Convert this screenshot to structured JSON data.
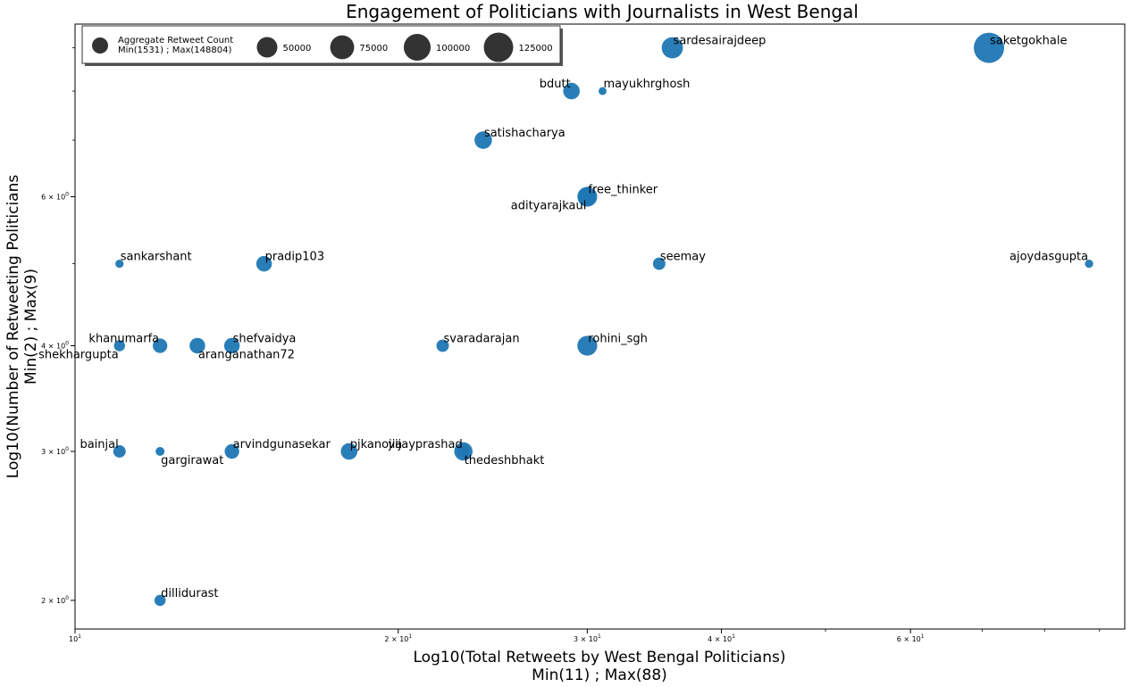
{
  "chart_data": {
    "type": "scatter",
    "title": "Engagement of Politicians with Journalists in West Bengal",
    "xlabel": "Log10(Total Retweets by West Bengal Politicians)",
    "xlabel_sub": "Min(11) ; Max(88)",
    "ylabel": "Log10(Number of Retweeting Politicians",
    "ylabel_sub": "Min(2) ; Max(9)",
    "x_scale": "log",
    "y_scale": "log",
    "xlim": [
      10,
      95
    ],
    "ylim": [
      1.85,
      9.6
    ],
    "grid": false,
    "x_ticks": [
      {
        "value": 10,
        "label": "10",
        "exp": "1"
      },
      {
        "value": 20,
        "label": "2 × 10",
        "exp": "1"
      },
      {
        "value": 30,
        "label": "3 × 10",
        "exp": "1"
      },
      {
        "value": 40,
        "label": "4 × 10",
        "exp": "1"
      },
      {
        "value": 60,
        "label": "6 × 10",
        "exp": "1"
      }
    ],
    "x_minor_ticks": [
      50,
      70,
      80,
      90
    ],
    "y_ticks": [
      {
        "value": 2,
        "label": "2 × 10",
        "exp": "0"
      },
      {
        "value": 3,
        "label": "3 × 10",
        "exp": "0"
      },
      {
        "value": 4,
        "label": "4 × 10",
        "exp": "0"
      },
      {
        "value": 6,
        "label": "6 × 10",
        "exp": "0"
      }
    ],
    "y_minor_ticks": [
      5,
      7,
      8,
      9
    ],
    "color": "#1f77b4",
    "legend": {
      "position": "top-left",
      "title": "Aggregate Retweet Count",
      "subtitle": "Min(1531) ; Max(148804)",
      "entries": [
        {
          "label": "50000",
          "value": 50000
        },
        {
          "label": "75000",
          "value": 75000
        },
        {
          "label": "100000",
          "value": 100000
        },
        {
          "label": "125000",
          "value": 125000
        }
      ]
    },
    "points": [
      {
        "name": "saketgokhale",
        "x": 71,
        "y": 9,
        "size": 148804,
        "anchor": "right-top"
      },
      {
        "name": "sardesairajdeep",
        "x": 36,
        "y": 9,
        "size": 60000,
        "anchor": "right-top"
      },
      {
        "name": "bdutt",
        "x": 29,
        "y": 8,
        "size": 30000,
        "anchor": "left-top"
      },
      {
        "name": "mayukhrghosh",
        "x": 31,
        "y": 8,
        "size": 1531,
        "anchor": "right-top"
      },
      {
        "name": "satishacharya",
        "x": 24,
        "y": 7,
        "size": 35000,
        "anchor": "right-top"
      },
      {
        "name": "free_thinker",
        "x": 30,
        "y": 6,
        "size": 50000,
        "anchor": "right-top"
      },
      {
        "name": "adityarajkaul",
        "x": 30,
        "y": 6,
        "size": 35000,
        "anchor": "left-bottom"
      },
      {
        "name": "sankarshant",
        "x": 11,
        "y": 5,
        "size": 2000,
        "anchor": "right-top"
      },
      {
        "name": "pradip103",
        "x": 15,
        "y": 5,
        "size": 25000,
        "anchor": "right-top"
      },
      {
        "name": "seemay",
        "x": 35,
        "y": 5,
        "size": 12000,
        "anchor": "right-top"
      },
      {
        "name": "ajoydasgupta",
        "x": 88,
        "y": 5,
        "size": 2000,
        "anchor": "left-top"
      },
      {
        "name": "khanumarfa",
        "x": 12,
        "y": 4,
        "size": 20000,
        "anchor": "left-top"
      },
      {
        "name": "shekhargupta",
        "x": 11,
        "y": 4,
        "size": 8000,
        "anchor": "left-bottom"
      },
      {
        "name": "aranganathan72",
        "x": 13,
        "y": 4,
        "size": 25000,
        "anchor": "right-bottom"
      },
      {
        "name": "shefvaidya",
        "x": 14,
        "y": 4,
        "size": 25000,
        "anchor": "right-top"
      },
      {
        "name": "svaradarajan",
        "x": 22,
        "y": 4,
        "size": 12000,
        "anchor": "right-top"
      },
      {
        "name": "rohini_sgh",
        "x": 30,
        "y": 4,
        "size": 50000,
        "anchor": "right-top"
      },
      {
        "name": "bainjal",
        "x": 11,
        "y": 3,
        "size": 12000,
        "anchor": "left-top"
      },
      {
        "name": "gargirawat",
        "x": 12,
        "y": 3,
        "size": 3000,
        "anchor": "right-bottom"
      },
      {
        "name": "arvindgunasekar",
        "x": 14,
        "y": 3,
        "size": 20000,
        "anchor": "right-top"
      },
      {
        "name": "pjkanojia",
        "x": 18,
        "y": 3,
        "size": 30000,
        "anchor": "right-top"
      },
      {
        "name": "vijayprashad",
        "x": 23,
        "y": 3,
        "size": 40000,
        "anchor": "left-top"
      },
      {
        "name": "thedeshbhakt",
        "x": 23,
        "y": 3,
        "size": 12000,
        "anchor": "right-bottom"
      },
      {
        "name": "dillidurast",
        "x": 12,
        "y": 2,
        "size": 8000,
        "anchor": "right-top"
      }
    ]
  }
}
